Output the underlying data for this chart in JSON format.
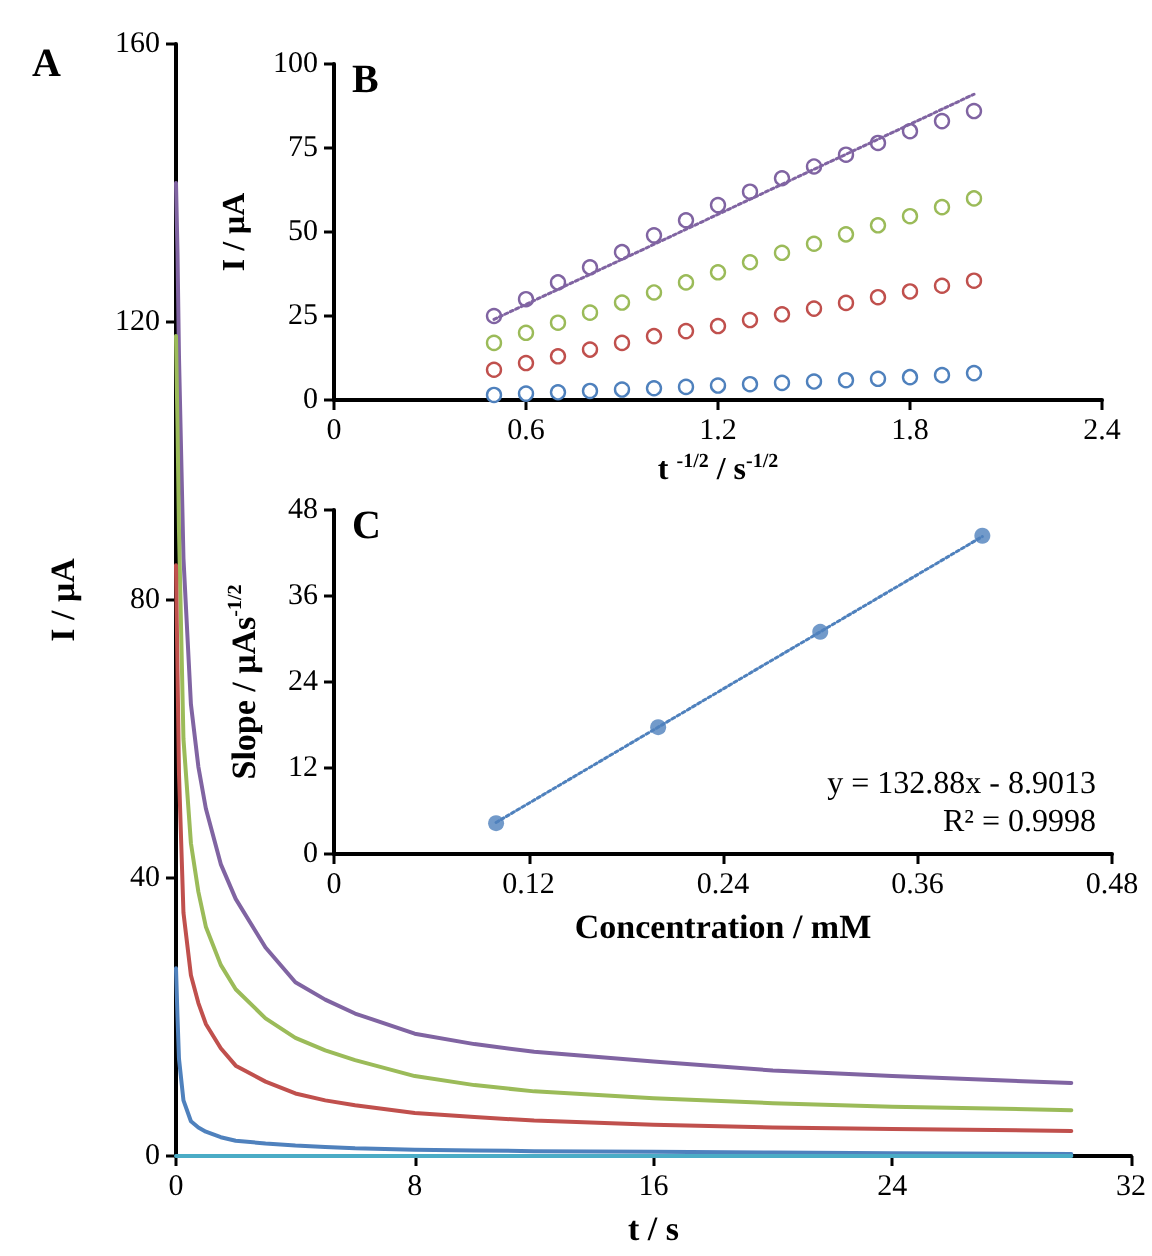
{
  "chart_data": [
    {
      "type": "line",
      "title": "A",
      "xlabel": "t / s",
      "ylabel": "I / μA",
      "xlim": [
        0,
        32
      ],
      "xticks": [
        0,
        8,
        16,
        24,
        32
      ],
      "ylim": [
        0,
        160
      ],
      "yticks": [
        0,
        40,
        80,
        120,
        160
      ],
      "marker": "none",
      "line_style": "solid",
      "series": [
        {
          "color": "#8064a2",
          "x": [
            0,
            0.05,
            0.1,
            0.25,
            0.5,
            0.75,
            1,
            1.5,
            2,
            3,
            4,
            5,
            6,
            8,
            10,
            12,
            16,
            20,
            24,
            30
          ],
          "values": [
            140,
            130,
            115,
            86,
            65,
            56,
            50,
            42,
            37,
            30,
            25,
            22.5,
            20.5,
            17.6,
            16.1,
            15,
            13.6,
            12.3,
            11.5,
            10.5
          ]
        },
        {
          "color": "#9bbb59",
          "x": [
            0,
            0.05,
            0.1,
            0.25,
            0.5,
            0.75,
            1,
            1.5,
            2,
            3,
            4,
            5,
            6,
            8,
            10,
            12,
            16,
            20,
            24,
            30
          ],
          "values": [
            118,
            105,
            90,
            60,
            45,
            38,
            33,
            27.5,
            24,
            19.8,
            17,
            15.2,
            13.8,
            11.5,
            10.2,
            9.3,
            8.3,
            7.6,
            7.1,
            6.6
          ]
        },
        {
          "color": "#c0504d",
          "x": [
            0,
            0.05,
            0.1,
            0.25,
            0.5,
            0.75,
            1,
            1.5,
            2,
            3,
            4,
            5,
            6,
            8,
            10,
            12,
            16,
            20,
            24,
            30
          ],
          "values": [
            85,
            70,
            55,
            35,
            26,
            22,
            19,
            15.5,
            13,
            10.7,
            9,
            8,
            7.3,
            6.2,
            5.6,
            5.1,
            4.5,
            4.1,
            3.9,
            3.6
          ]
        },
        {
          "color": "#4f81bd",
          "x": [
            0,
            0.05,
            0.1,
            0.25,
            0.5,
            0.75,
            1,
            1.5,
            2,
            3,
            4,
            5,
            6,
            8,
            10,
            12,
            16,
            20,
            24,
            30
          ],
          "values": [
            27,
            20,
            14,
            8,
            5,
            4.1,
            3.5,
            2.7,
            2.2,
            1.8,
            1.5,
            1.3,
            1.1,
            0.9,
            0.8,
            0.7,
            0.6,
            0.5,
            0.4,
            0.3
          ]
        },
        {
          "color": "#4bacc6",
          "x": [
            0,
            30
          ],
          "values": [
            0,
            0
          ]
        }
      ]
    },
    {
      "type": "scatter",
      "title": "B",
      "xlabel": "t $^{-1/2}$ / s$^{-1/2}$",
      "ylabel": "I / μA",
      "xlim": [
        0,
        2.4
      ],
      "xticks": [
        0,
        0.6,
        1.2,
        1.8,
        2.4
      ],
      "ylim": [
        0,
        100
      ],
      "yticks": [
        0,
        25,
        50,
        75,
        100
      ],
      "marker": "circle",
      "series": [
        {
          "color": "#8064a2",
          "x": [
            0.5,
            0.6,
            0.7,
            0.8,
            0.9,
            1.0,
            1.1,
            1.2,
            1.3,
            1.4,
            1.5,
            1.6,
            1.7,
            1.8,
            1.9,
            2.0
          ],
          "values": [
            25,
            30,
            35,
            39.5,
            44,
            49,
            53.5,
            58,
            62,
            66,
            69.5,
            73,
            76.5,
            80,
            83,
            86
          ]
        },
        {
          "color": "#9bbb59",
          "x": [
            0.5,
            0.6,
            0.7,
            0.8,
            0.9,
            1.0,
            1.1,
            1.2,
            1.3,
            1.4,
            1.5,
            1.6,
            1.7,
            1.8,
            1.9,
            2.0
          ],
          "values": [
            17,
            20,
            23,
            26,
            29,
            32,
            35,
            38,
            41,
            43.8,
            46.5,
            49.3,
            52,
            54.7,
            57.4,
            60
          ]
        },
        {
          "color": "#c0504d",
          "x": [
            0.5,
            0.6,
            0.7,
            0.8,
            0.9,
            1.0,
            1.1,
            1.2,
            1.3,
            1.4,
            1.5,
            1.6,
            1.7,
            1.8,
            1.9,
            2.0
          ],
          "values": [
            9,
            11,
            13,
            15,
            17,
            19,
            20.5,
            22,
            23.8,
            25.5,
            27.2,
            28.9,
            30.6,
            32.3,
            34,
            35.5
          ]
        },
        {
          "color": "#4f81bd",
          "x": [
            0.5,
            0.6,
            0.7,
            0.8,
            0.9,
            1.0,
            1.1,
            1.2,
            1.3,
            1.4,
            1.5,
            1.6,
            1.7,
            1.8,
            1.9,
            2.0
          ],
          "values": [
            1.5,
            1.9,
            2.3,
            2.7,
            3.1,
            3.5,
            3.9,
            4.3,
            4.7,
            5.1,
            5.5,
            5.9,
            6.3,
            6.8,
            7.4,
            8
          ]
        },
        {
          "type": "line",
          "marker": "none",
          "line_style": "dotted",
          "color": "#8064a2",
          "x": [
            0.5,
            2.0
          ],
          "values": [
            24,
            91
          ]
        }
      ]
    },
    {
      "type": "scatter",
      "title": "C",
      "xlabel": "Concentration / mM",
      "ylabel": "Slope / μAs$^{-1/2}$",
      "xlim": [
        0,
        0.48
      ],
      "xticks": [
        0,
        0.12,
        0.24,
        0.36,
        0.48
      ],
      "ylim": [
        0,
        48
      ],
      "yticks": [
        0,
        12,
        24,
        36,
        48
      ],
      "marker": "circle",
      "annotations": [
        "y = 132.88x - 8.9013",
        "R² = 0.9998"
      ],
      "series": [
        {
          "color": "#4f81bd",
          "x": [
            0.1,
            0.2,
            0.3,
            0.4
          ],
          "values": [
            4.3,
            17.7,
            31.0,
            44.4
          ]
        },
        {
          "type": "line",
          "marker": "none",
          "line_style": "dotted",
          "color": "#4f81bd",
          "x": [
            0.1,
            0.4
          ],
          "values": [
            4.4,
            44.3
          ]
        }
      ]
    }
  ]
}
